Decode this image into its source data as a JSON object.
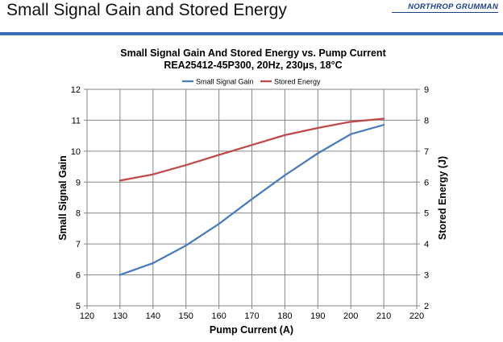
{
  "slide": {
    "title": "Small Signal Gain and Stored Energy",
    "logo_text": "NORTHROP GRUMMAN"
  },
  "colors": {
    "brand_blue": "#1d3f8f",
    "gain_line": "#4a7ebb",
    "energy_line": "#be4b48",
    "grid": "#868686"
  },
  "chart_data": {
    "type": "line",
    "title": "Small Signal Gain And Stored Energy vs. Pump Current",
    "subtitle": "REA25412-45P300, 20Hz, 230µs, 18°C",
    "xlabel": "Pump Current (A)",
    "ylabel": "Small Signal Gain",
    "y2label": "Stored Energy (J)",
    "xlim": [
      120,
      220
    ],
    "ylim": [
      5,
      12
    ],
    "y2lim": [
      2,
      9
    ],
    "x_ticks": [
      "120",
      "130",
      "140",
      "150",
      "160",
      "170",
      "180",
      "190",
      "200",
      "210",
      "220"
    ],
    "y_ticks": [
      "5",
      "6",
      "7",
      "8",
      "9",
      "10",
      "11",
      "12"
    ],
    "y2_ticks": [
      "2",
      "3",
      "4",
      "5",
      "6",
      "7",
      "8",
      "9"
    ],
    "grid": true,
    "legend_position": "top-center",
    "x": [
      130,
      140,
      150,
      160,
      170,
      180,
      190,
      200,
      210
    ],
    "series": [
      {
        "name": "Small Signal Gain",
        "axis": "left",
        "color": "#4a7ebb",
        "values": [
          6.0,
          6.38,
          6.95,
          7.65,
          8.45,
          9.22,
          9.93,
          10.55,
          10.85
        ]
      },
      {
        "name": "Stored Energy",
        "axis": "right",
        "color": "#be4b48",
        "values": [
          6.05,
          6.25,
          6.55,
          6.88,
          7.2,
          7.52,
          7.75,
          7.95,
          8.05
        ]
      }
    ]
  }
}
